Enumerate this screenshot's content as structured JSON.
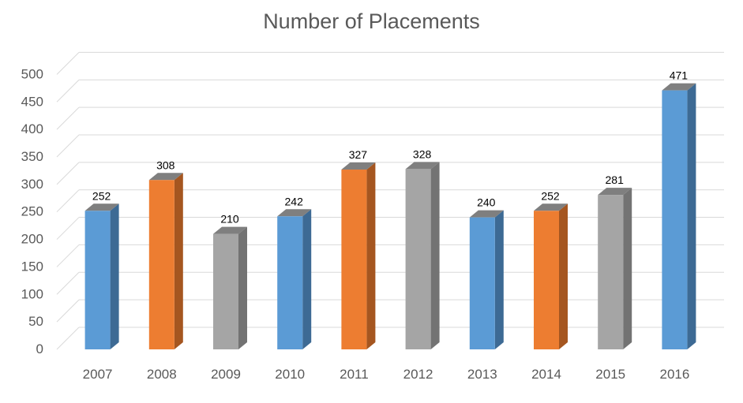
{
  "chart_data": {
    "type": "bar",
    "title": "Number of Placements",
    "xlabel": "",
    "ylabel": "",
    "categories": [
      "2007",
      "2008",
      "2009",
      "2010",
      "2011",
      "2012",
      "2013",
      "2014",
      "2015",
      "2016"
    ],
    "values": [
      252,
      308,
      210,
      242,
      327,
      328,
      240,
      252,
      281,
      471
    ],
    "data_labels": [
      "252",
      "308",
      "210",
      "242",
      "327",
      "328",
      "240",
      "252",
      "281",
      "471"
    ],
    "bar_colors": [
      "#5B9BD5",
      "#ED7D31",
      "#A5A5A5",
      "#5B9BD5",
      "#ED7D31",
      "#A5A5A5",
      "#5B9BD5",
      "#ED7D31",
      "#A5A5A5",
      "#5B9BD5"
    ],
    "bar_side_colors": [
      "#3D6A94",
      "#A55620",
      "#737373",
      "#3D6A94",
      "#A55620",
      "#737373",
      "#3D6A94",
      "#A55620",
      "#737373",
      "#3D6A94"
    ],
    "bar_top_color": "#7F7F7F",
    "ylim": [
      0,
      500
    ],
    "yticks": [
      "0",
      "50",
      "100",
      "150",
      "200",
      "250",
      "300",
      "350",
      "400",
      "450",
      "500"
    ],
    "grid": true,
    "legend": "none",
    "style": "3d-column"
  }
}
